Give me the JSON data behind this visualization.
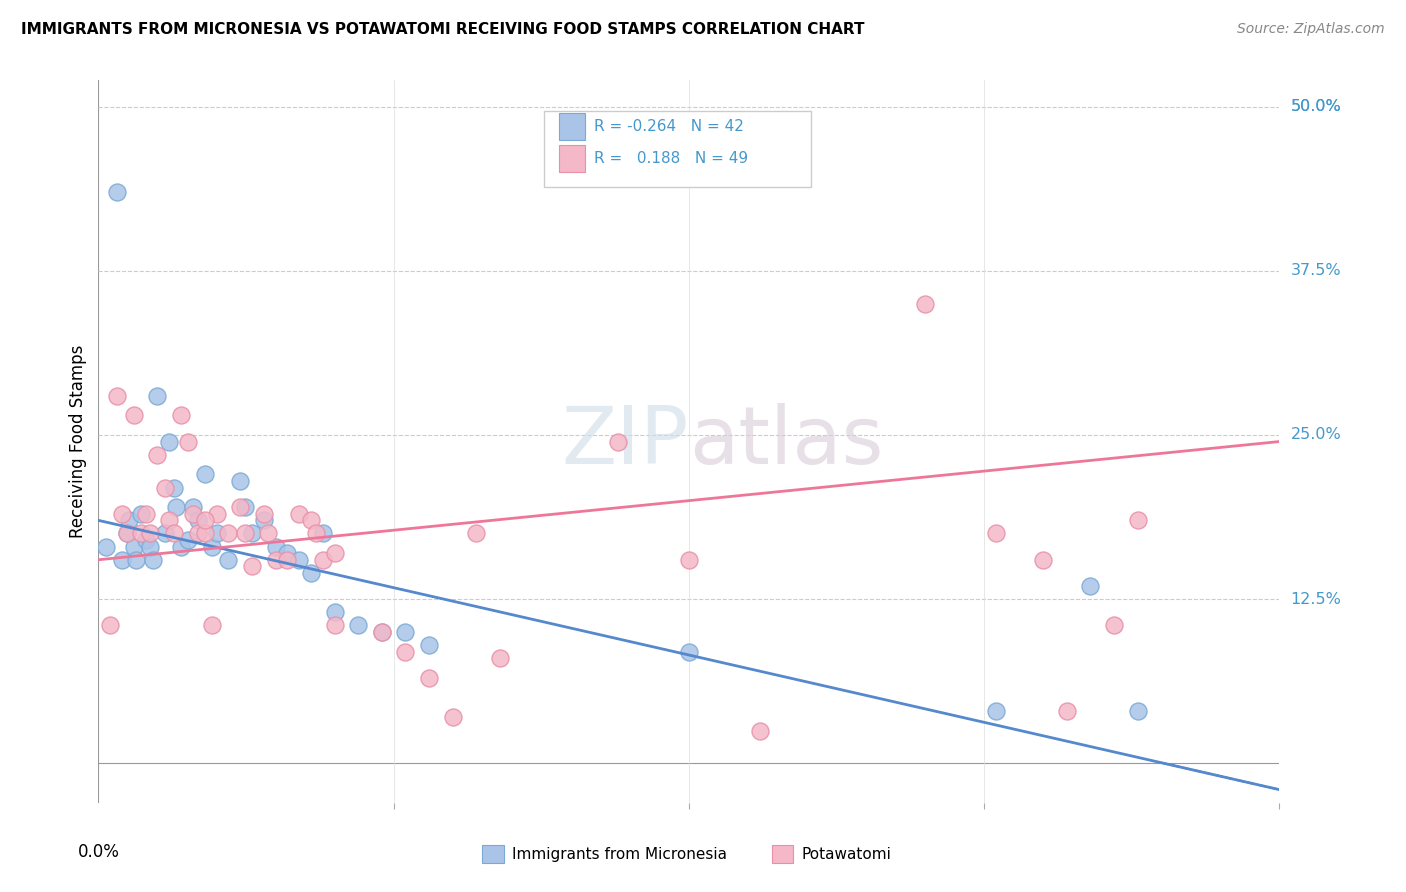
{
  "title": "IMMIGRANTS FROM MICRONESIA VS POTAWATOMI RECEIVING FOOD STAMPS CORRELATION CHART",
  "source": "Source: ZipAtlas.com",
  "ylabel": "Receiving Food Stamps",
  "color_blue": "#aac4e8",
  "color_blue_edge": "#7aaad4",
  "color_pink": "#f4b8c8",
  "color_pink_edge": "#e890a8",
  "color_blue_line": "#5588cc",
  "color_pink_line": "#ee7799",
  "color_axis_label": "#4499cc",
  "xmin": 0.0,
  "xmax": 0.5,
  "ymin": -0.03,
  "ymax": 0.52,
  "blue_line_y0": 0.185,
  "blue_line_y1": -0.02,
  "pink_line_y0": 0.155,
  "pink_line_y1": 0.245,
  "blue_scatter_x": [
    0.003,
    0.008,
    0.01,
    0.012,
    0.013,
    0.015,
    0.016,
    0.018,
    0.02,
    0.022,
    0.023,
    0.025,
    0.028,
    0.03,
    0.032,
    0.033,
    0.035,
    0.038,
    0.04,
    0.042,
    0.045,
    0.048,
    0.05,
    0.055,
    0.06,
    0.062,
    0.065,
    0.07,
    0.075,
    0.08,
    0.085,
    0.09,
    0.095,
    0.1,
    0.11,
    0.12,
    0.13,
    0.14,
    0.25,
    0.38,
    0.42,
    0.44
  ],
  "blue_scatter_y": [
    0.165,
    0.435,
    0.155,
    0.175,
    0.185,
    0.165,
    0.155,
    0.19,
    0.17,
    0.165,
    0.155,
    0.28,
    0.175,
    0.245,
    0.21,
    0.195,
    0.165,
    0.17,
    0.195,
    0.185,
    0.22,
    0.165,
    0.175,
    0.155,
    0.215,
    0.195,
    0.175,
    0.185,
    0.165,
    0.16,
    0.155,
    0.145,
    0.175,
    0.115,
    0.105,
    0.1,
    0.1,
    0.09,
    0.085,
    0.04,
    0.135,
    0.04
  ],
  "pink_scatter_x": [
    0.005,
    0.008,
    0.01,
    0.012,
    0.015,
    0.018,
    0.02,
    0.022,
    0.025,
    0.028,
    0.03,
    0.032,
    0.035,
    0.038,
    0.04,
    0.042,
    0.045,
    0.048,
    0.05,
    0.055,
    0.06,
    0.062,
    0.065,
    0.07,
    0.072,
    0.075,
    0.08,
    0.085,
    0.09,
    0.092,
    0.095,
    0.1,
    0.12,
    0.13,
    0.14,
    0.22,
    0.25,
    0.28,
    0.35,
    0.38,
    0.4,
    0.41,
    0.43,
    0.44,
    0.045,
    0.1,
    0.17,
    0.16,
    0.15
  ],
  "pink_scatter_y": [
    0.105,
    0.28,
    0.19,
    0.175,
    0.265,
    0.175,
    0.19,
    0.175,
    0.235,
    0.21,
    0.185,
    0.175,
    0.265,
    0.245,
    0.19,
    0.175,
    0.175,
    0.105,
    0.19,
    0.175,
    0.195,
    0.175,
    0.15,
    0.19,
    0.175,
    0.155,
    0.155,
    0.19,
    0.185,
    0.175,
    0.155,
    0.105,
    0.1,
    0.085,
    0.065,
    0.245,
    0.155,
    0.025,
    0.35,
    0.175,
    0.155,
    0.04,
    0.105,
    0.185,
    0.185,
    0.16,
    0.08,
    0.175,
    0.035
  ]
}
